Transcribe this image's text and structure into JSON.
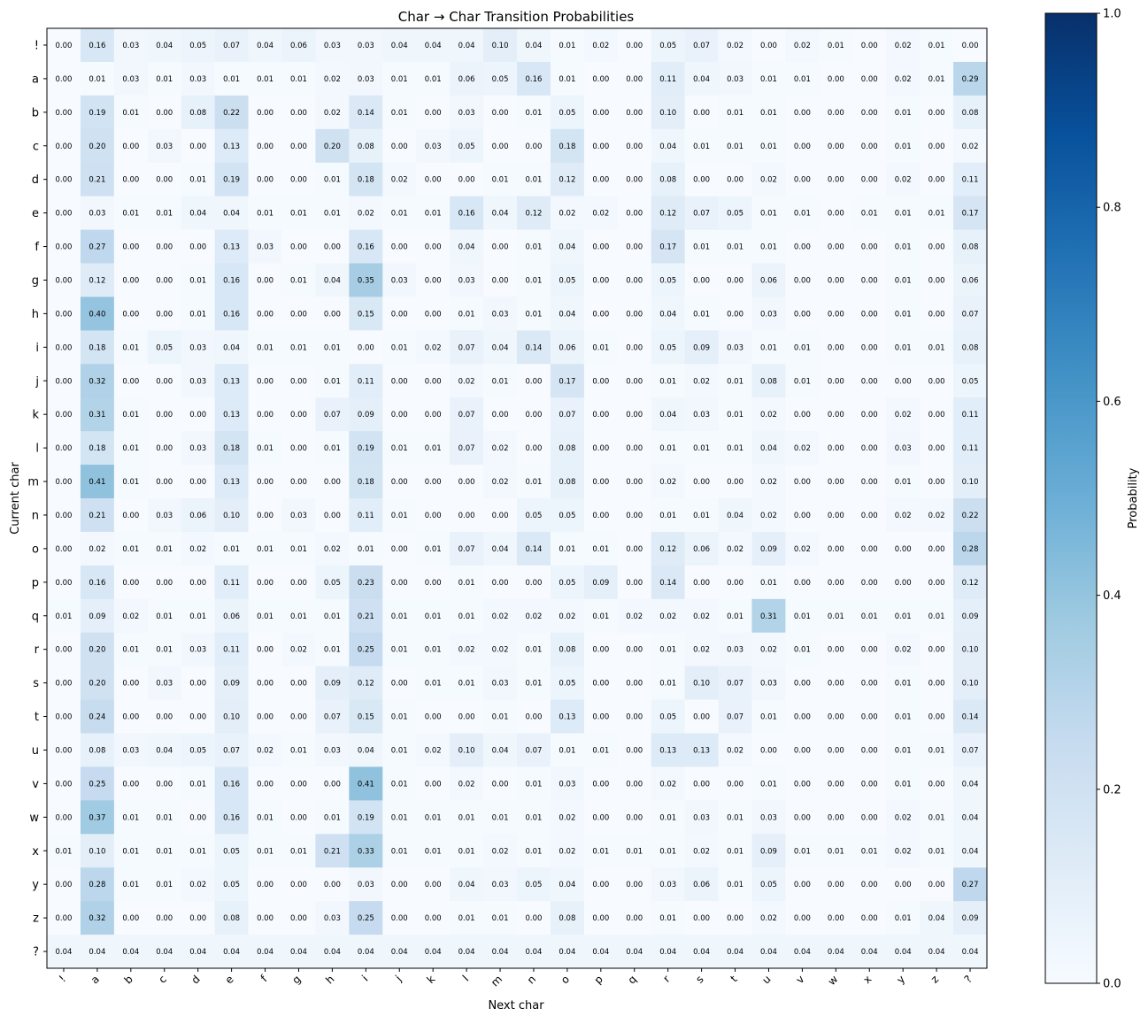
{
  "chart_data": {
    "type": "heatmap",
    "title": "Char → Char Transition Probabilities",
    "xlabel": "Next char",
    "ylabel": "Current char",
    "x_categories": [
      "!",
      "a",
      "b",
      "c",
      "d",
      "e",
      "f",
      "g",
      "h",
      "i",
      "j",
      "k",
      "l",
      "m",
      "n",
      "o",
      "p",
      "q",
      "r",
      "s",
      "t",
      "u",
      "v",
      "w",
      "x",
      "y",
      "z",
      "?"
    ],
    "y_categories": [
      "!",
      "a",
      "b",
      "c",
      "d",
      "e",
      "f",
      "g",
      "h",
      "i",
      "j",
      "k",
      "l",
      "m",
      "n",
      "o",
      "p",
      "q",
      "r",
      "s",
      "t",
      "u",
      "v",
      "w",
      "x",
      "y",
      "z",
      "?"
    ],
    "values": [
      [
        0.0,
        0.16,
        0.03,
        0.04,
        0.05,
        0.07,
        0.04,
        0.06,
        0.03,
        0.03,
        0.04,
        0.04,
        0.04,
        0.1,
        0.04,
        0.01,
        0.02,
        0.0,
        0.05,
        0.07,
        0.02,
        0.0,
        0.02,
        0.01,
        0.0,
        0.02,
        0.01,
        0.0
      ],
      [
        0.0,
        0.01,
        0.03,
        0.01,
        0.03,
        0.01,
        0.01,
        0.01,
        0.02,
        0.03,
        0.01,
        0.01,
        0.06,
        0.05,
        0.16,
        0.01,
        0.0,
        0.0,
        0.11,
        0.04,
        0.03,
        0.01,
        0.01,
        0.0,
        0.0,
        0.02,
        0.01,
        0.29
      ],
      [
        0.0,
        0.19,
        0.01,
        0.0,
        0.08,
        0.22,
        0.0,
        0.0,
        0.02,
        0.14,
        0.01,
        0.0,
        0.03,
        0.0,
        0.01,
        0.05,
        0.0,
        0.0,
        0.1,
        0.0,
        0.01,
        0.01,
        0.0,
        0.0,
        0.0,
        0.01,
        0.0,
        0.08
      ],
      [
        0.0,
        0.2,
        0.0,
        0.03,
        0.0,
        0.13,
        0.0,
        0.0,
        0.2,
        0.08,
        0.0,
        0.03,
        0.05,
        0.0,
        0.0,
        0.18,
        0.0,
        0.0,
        0.04,
        0.01,
        0.01,
        0.01,
        0.0,
        0.0,
        0.0,
        0.01,
        0.0,
        0.02
      ],
      [
        0.0,
        0.21,
        0.0,
        0.0,
        0.01,
        0.19,
        0.0,
        0.0,
        0.01,
        0.18,
        0.02,
        0.0,
        0.0,
        0.01,
        0.01,
        0.12,
        0.0,
        0.0,
        0.08,
        0.0,
        0.0,
        0.02,
        0.0,
        0.0,
        0.0,
        0.02,
        0.0,
        0.11
      ],
      [
        0.0,
        0.03,
        0.01,
        0.01,
        0.04,
        0.04,
        0.01,
        0.01,
        0.01,
        0.02,
        0.01,
        0.01,
        0.16,
        0.04,
        0.12,
        0.02,
        0.02,
        0.0,
        0.12,
        0.07,
        0.05,
        0.01,
        0.01,
        0.0,
        0.01,
        0.01,
        0.01,
        0.17
      ],
      [
        0.0,
        0.27,
        0.0,
        0.0,
        0.0,
        0.13,
        0.03,
        0.0,
        0.0,
        0.16,
        0.0,
        0.0,
        0.04,
        0.0,
        0.01,
        0.04,
        0.0,
        0.0,
        0.17,
        0.01,
        0.01,
        0.01,
        0.0,
        0.0,
        0.0,
        0.01,
        0.0,
        0.08
      ],
      [
        0.0,
        0.12,
        0.0,
        0.0,
        0.01,
        0.16,
        0.0,
        0.01,
        0.04,
        0.35,
        0.03,
        0.0,
        0.03,
        0.0,
        0.01,
        0.05,
        0.0,
        0.0,
        0.05,
        0.0,
        0.0,
        0.06,
        0.0,
        0.0,
        0.0,
        0.01,
        0.0,
        0.06
      ],
      [
        0.0,
        0.4,
        0.0,
        0.0,
        0.01,
        0.16,
        0.0,
        0.0,
        0.0,
        0.15,
        0.0,
        0.0,
        0.01,
        0.03,
        0.01,
        0.04,
        0.0,
        0.0,
        0.04,
        0.01,
        0.0,
        0.03,
        0.0,
        0.0,
        0.0,
        0.01,
        0.0,
        0.07
      ],
      [
        0.0,
        0.18,
        0.01,
        0.05,
        0.03,
        0.04,
        0.01,
        0.01,
        0.01,
        0.0,
        0.01,
        0.02,
        0.07,
        0.04,
        0.14,
        0.06,
        0.01,
        0.0,
        0.05,
        0.09,
        0.03,
        0.01,
        0.01,
        0.0,
        0.0,
        0.01,
        0.01,
        0.08
      ],
      [
        0.0,
        0.32,
        0.0,
        0.0,
        0.03,
        0.13,
        0.0,
        0.0,
        0.01,
        0.11,
        0.0,
        0.0,
        0.02,
        0.01,
        0.0,
        0.17,
        0.0,
        0.0,
        0.01,
        0.02,
        0.01,
        0.08,
        0.01,
        0.0,
        0.0,
        0.0,
        0.0,
        0.05
      ],
      [
        0.0,
        0.31,
        0.01,
        0.0,
        0.0,
        0.13,
        0.0,
        0.0,
        0.07,
        0.09,
        0.0,
        0.0,
        0.07,
        0.0,
        0.0,
        0.07,
        0.0,
        0.0,
        0.04,
        0.03,
        0.01,
        0.02,
        0.0,
        0.0,
        0.0,
        0.02,
        0.0,
        0.11
      ],
      [
        0.0,
        0.18,
        0.01,
        0.0,
        0.03,
        0.18,
        0.01,
        0.0,
        0.01,
        0.19,
        0.01,
        0.01,
        0.07,
        0.02,
        0.0,
        0.08,
        0.0,
        0.0,
        0.01,
        0.01,
        0.01,
        0.04,
        0.02,
        0.0,
        0.0,
        0.03,
        0.0,
        0.11
      ],
      [
        0.0,
        0.41,
        0.01,
        0.0,
        0.0,
        0.13,
        0.0,
        0.0,
        0.0,
        0.18,
        0.0,
        0.0,
        0.0,
        0.02,
        0.01,
        0.08,
        0.0,
        0.0,
        0.02,
        0.0,
        0.0,
        0.02,
        0.0,
        0.0,
        0.0,
        0.01,
        0.0,
        0.1
      ],
      [
        0.0,
        0.21,
        0.0,
        0.03,
        0.06,
        0.1,
        0.0,
        0.03,
        0.0,
        0.11,
        0.01,
        0.0,
        0.0,
        0.0,
        0.05,
        0.05,
        0.0,
        0.0,
        0.01,
        0.01,
        0.04,
        0.02,
        0.0,
        0.0,
        0.0,
        0.02,
        0.02,
        0.22
      ],
      [
        0.0,
        0.02,
        0.01,
        0.01,
        0.02,
        0.01,
        0.01,
        0.01,
        0.02,
        0.01,
        0.0,
        0.01,
        0.07,
        0.04,
        0.14,
        0.01,
        0.01,
        0.0,
        0.12,
        0.06,
        0.02,
        0.09,
        0.02,
        0.0,
        0.0,
        0.0,
        0.0,
        0.28
      ],
      [
        0.0,
        0.16,
        0.0,
        0.0,
        0.0,
        0.11,
        0.0,
        0.0,
        0.05,
        0.23,
        0.0,
        0.0,
        0.01,
        0.0,
        0.0,
        0.05,
        0.09,
        0.0,
        0.14,
        0.0,
        0.0,
        0.01,
        0.0,
        0.0,
        0.0,
        0.0,
        0.0,
        0.12
      ],
      [
        0.01,
        0.09,
        0.02,
        0.01,
        0.01,
        0.06,
        0.01,
        0.01,
        0.01,
        0.21,
        0.01,
        0.01,
        0.01,
        0.02,
        0.02,
        0.02,
        0.01,
        0.02,
        0.02,
        0.02,
        0.01,
        0.31,
        0.01,
        0.01,
        0.01,
        0.01,
        0.01,
        0.09
      ],
      [
        0.0,
        0.2,
        0.01,
        0.01,
        0.03,
        0.11,
        0.0,
        0.02,
        0.01,
        0.25,
        0.01,
        0.01,
        0.02,
        0.02,
        0.01,
        0.08,
        0.0,
        0.0,
        0.01,
        0.02,
        0.03,
        0.02,
        0.01,
        0.0,
        0.0,
        0.02,
        0.0,
        0.1
      ],
      [
        0.0,
        0.2,
        0.0,
        0.03,
        0.0,
        0.09,
        0.0,
        0.0,
        0.09,
        0.12,
        0.0,
        0.01,
        0.01,
        0.03,
        0.01,
        0.05,
        0.0,
        0.0,
        0.01,
        0.1,
        0.07,
        0.03,
        0.0,
        0.0,
        0.0,
        0.01,
        0.0,
        0.1
      ],
      [
        0.0,
        0.24,
        0.0,
        0.0,
        0.0,
        0.1,
        0.0,
        0.0,
        0.07,
        0.15,
        0.01,
        0.0,
        0.0,
        0.01,
        0.0,
        0.13,
        0.0,
        0.0,
        0.05,
        0.0,
        0.07,
        0.01,
        0.0,
        0.0,
        0.0,
        0.01,
        0.0,
        0.14
      ],
      [
        0.0,
        0.08,
        0.03,
        0.04,
        0.05,
        0.07,
        0.02,
        0.01,
        0.03,
        0.04,
        0.01,
        0.02,
        0.1,
        0.04,
        0.07,
        0.01,
        0.01,
        0.0,
        0.13,
        0.13,
        0.02,
        0.0,
        0.0,
        0.0,
        0.0,
        0.01,
        0.01,
        0.07
      ],
      [
        0.0,
        0.25,
        0.0,
        0.0,
        0.01,
        0.16,
        0.0,
        0.0,
        0.0,
        0.41,
        0.01,
        0.0,
        0.02,
        0.0,
        0.01,
        0.03,
        0.0,
        0.0,
        0.02,
        0.0,
        0.0,
        0.01,
        0.0,
        0.0,
        0.0,
        0.01,
        0.0,
        0.04
      ],
      [
        0.0,
        0.37,
        0.01,
        0.01,
        0.0,
        0.16,
        0.01,
        0.0,
        0.01,
        0.19,
        0.01,
        0.01,
        0.01,
        0.01,
        0.01,
        0.02,
        0.0,
        0.0,
        0.01,
        0.03,
        0.01,
        0.03,
        0.0,
        0.0,
        0.0,
        0.02,
        0.01,
        0.04
      ],
      [
        0.01,
        0.1,
        0.01,
        0.01,
        0.01,
        0.05,
        0.01,
        0.01,
        0.21,
        0.33,
        0.01,
        0.01,
        0.01,
        0.02,
        0.01,
        0.02,
        0.01,
        0.01,
        0.01,
        0.02,
        0.01,
        0.09,
        0.01,
        0.01,
        0.01,
        0.02,
        0.01,
        0.04
      ],
      [
        0.0,
        0.28,
        0.01,
        0.01,
        0.02,
        0.05,
        0.0,
        0.0,
        0.0,
        0.03,
        0.0,
        0.0,
        0.04,
        0.03,
        0.05,
        0.04,
        0.0,
        0.0,
        0.03,
        0.06,
        0.01,
        0.05,
        0.0,
        0.0,
        0.0,
        0.0,
        0.0,
        0.27
      ],
      [
        0.0,
        0.32,
        0.0,
        0.0,
        0.0,
        0.08,
        0.0,
        0.0,
        0.03,
        0.25,
        0.0,
        0.0,
        0.01,
        0.01,
        0.0,
        0.08,
        0.0,
        0.0,
        0.01,
        0.0,
        0.0,
        0.02,
        0.0,
        0.0,
        0.0,
        0.01,
        0.04,
        0.09
      ],
      [
        0.04,
        0.04,
        0.04,
        0.04,
        0.04,
        0.04,
        0.04,
        0.04,
        0.04,
        0.04,
        0.04,
        0.04,
        0.04,
        0.04,
        0.04,
        0.04,
        0.04,
        0.04,
        0.04,
        0.04,
        0.04,
        0.04,
        0.04,
        0.04,
        0.04,
        0.04,
        0.04,
        0.04
      ]
    ],
    "value_format": "0.00",
    "colormap": "Blues",
    "color_range": [
      0.0,
      1.0
    ],
    "colorbar": {
      "label": "Probability",
      "ticks": [
        "0.0",
        "0.2",
        "0.4",
        "0.6",
        "0.8",
        "1.0"
      ]
    },
    "grid": false
  }
}
